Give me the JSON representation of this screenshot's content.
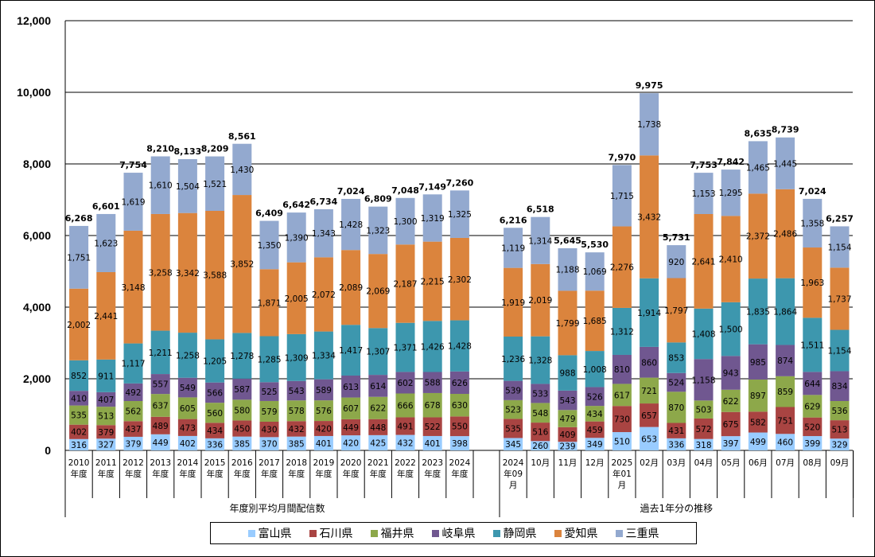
{
  "chart_data": {
    "type": "bar",
    "stacked": true,
    "title": "",
    "xlabel": "",
    "ylabel": "",
    "ylim": [
      0,
      12000
    ],
    "yticks": [
      0,
      2000,
      4000,
      6000,
      8000,
      10000,
      12000
    ],
    "ytick_labels": [
      "0",
      "2,000",
      "4,000",
      "6,000",
      "8,000",
      "10,000",
      "12,000"
    ],
    "grid": true,
    "legend_position": "bottom",
    "groups": [
      {
        "label": "年度別平均月間配信数",
        "categories": [
          "2010\n年度",
          "2011\n年度",
          "2012\n年度",
          "2013\n年度",
          "2014\n年度",
          "2015\n年度",
          "2016\n年度",
          "2017\n年度",
          "2018\n年度",
          "2019\n年度",
          "2020\n年度",
          "2021\n年度",
          "2022\n年度",
          "2023\n年度",
          "2024\n年度"
        ]
      },
      {
        "label": "過去1年分の推移",
        "categories": [
          "2024\n年09\n月",
          "10月",
          "11月",
          "12月",
          "2025\n年01\n月",
          "02月",
          "03月",
          "04月",
          "05月",
          "06月",
          "07月",
          "08月",
          "09月"
        ]
      }
    ],
    "series": [
      {
        "name": "富山県",
        "color": "#99CCFF",
        "values": [
          316,
          327,
          379,
          449,
          402,
          336,
          385,
          370,
          385,
          401,
          420,
          425,
          432,
          401,
          398,
          345,
          260,
          239,
          349,
          510,
          653,
          336,
          318,
          397,
          499,
          460,
          399,
          329
        ]
      },
      {
        "name": "石川県",
        "color": "#A94442",
        "values": [
          402,
          379,
          437,
          489,
          473,
          434,
          450,
          430,
          432,
          420,
          449,
          448,
          491,
          522,
          550,
          535,
          516,
          409,
          459,
          730,
          657,
          431,
          572,
          675,
          582,
          751,
          520,
          513
        ]
      },
      {
        "name": "福井県",
        "color": "#8DA84A",
        "values": [
          535,
          513,
          562,
          637,
          605,
          560,
          580,
          579,
          578,
          576,
          607,
          622,
          666,
          678,
          630,
          523,
          548,
          479,
          434,
          617,
          721,
          870,
          503,
          622,
          897,
          859,
          629,
          536
        ]
      },
      {
        "name": "岐阜県",
        "color": "#705790",
        "values": [
          410,
          407,
          492,
          557,
          549,
          566,
          587,
          525,
          543,
          589,
          613,
          614,
          602,
          588,
          626,
          539,
          533,
          543,
          526,
          810,
          860,
          524,
          1158,
          943,
          985,
          874,
          644,
          834
        ]
      },
      {
        "name": "静岡県",
        "color": "#3D97AE",
        "values": [
          852,
          911,
          1117,
          1211,
          1258,
          1205,
          1278,
          1285,
          1309,
          1334,
          1417,
          1307,
          1371,
          1426,
          1428,
          1236,
          1328,
          988,
          1008,
          1312,
          1914,
          853,
          1408,
          1500,
          1835,
          1864,
          1511,
          1154
        ]
      },
      {
        "name": "愛知県",
        "color": "#DB843D",
        "values": [
          2002,
          2441,
          3148,
          3258,
          3342,
          3588,
          3852,
          1871,
          2005,
          2072,
          2089,
          2069,
          2187,
          2215,
          2302,
          1919,
          2019,
          1799,
          1685,
          2276,
          3432,
          1797,
          2641,
          2410,
          2372,
          2486,
          1963,
          1737
        ]
      },
      {
        "name": "三重県",
        "color": "#93A9CF",
        "values": [
          1751,
          1623,
          1619,
          1610,
          1504,
          1521,
          1430,
          1350,
          1390,
          1343,
          1428,
          1323,
          1300,
          1319,
          1325,
          1119,
          1314,
          1188,
          1069,
          1715,
          1738,
          920,
          1153,
          1295,
          1465,
          1445,
          1358,
          1154
        ]
      }
    ],
    "totals": [
      6268,
      6601,
      7754,
      8210,
      8133,
      8209,
      8561,
      6409,
      6642,
      6734,
      7024,
      6809,
      7048,
      7149,
      7260,
      6216,
      6518,
      5645,
      5530,
      7970,
      9975,
      5731,
      7753,
      7842,
      8635,
      8739,
      7024,
      6257
    ]
  }
}
